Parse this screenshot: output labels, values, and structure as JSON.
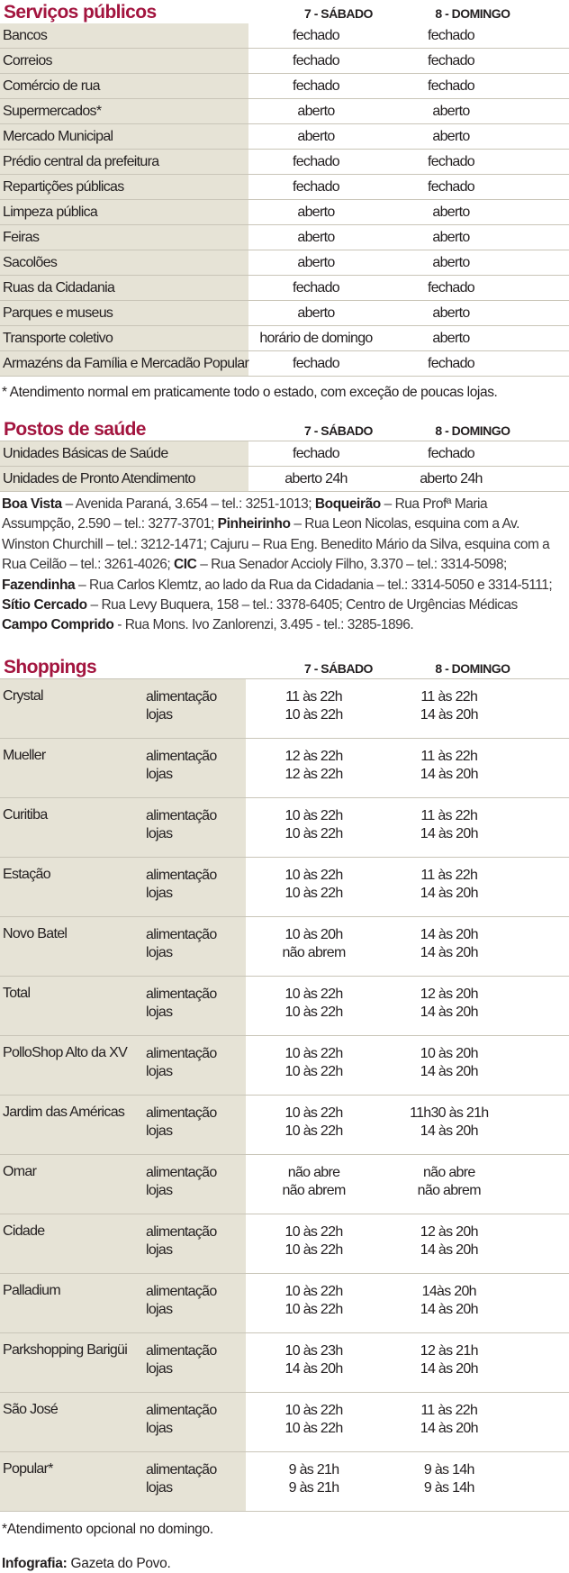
{
  "servicos": {
    "title": "Serviços públicos",
    "col1": "7 - SÁBADO",
    "col2": "8 - DOMINGO",
    "rows": [
      {
        "label": "Bancos",
        "sat": "fechado",
        "sun": "fechado"
      },
      {
        "label": "Correios",
        "sat": "fechado",
        "sun": "fechado"
      },
      {
        "label": "Comércio de rua",
        "sat": "fechado",
        "sun": "fechado"
      },
      {
        "label": "Supermercados*",
        "sat": "aberto",
        "sun": "aberto"
      },
      {
        "label": "Mercado Municipal",
        "sat": "aberto",
        "sun": "aberto"
      },
      {
        "label": "Prédio central da prefeitura",
        "sat": "fechado",
        "sun": "fechado"
      },
      {
        "label": "Repartições públicas",
        "sat": "fechado",
        "sun": "fechado"
      },
      {
        "label": "Limpeza pública",
        "sat": "aberto",
        "sun": "aberto"
      },
      {
        "label": "Feiras",
        "sat": "aberto",
        "sun": "aberto"
      },
      {
        "label": "Sacolões",
        "sat": "aberto",
        "sun": "aberto"
      },
      {
        "label": "Ruas da Cidadania",
        "sat": "fechado",
        "sun": "fechado"
      },
      {
        "label": "Parques e museus",
        "sat": "aberto",
        "sun": "aberto"
      },
      {
        "label": "Transporte coletivo",
        "sat": "horário de domingo",
        "sun": "aberto"
      },
      {
        "label": "Armazéns da Família e Mercadão Popular",
        "sat": "fechado",
        "sun": "fechado"
      }
    ],
    "note": "* Atendimento normal em praticamente todo o estado, com exceção de poucas lojas."
  },
  "saude": {
    "title": "Postos de saúde",
    "col1": "7 - SÁBADO",
    "col2": "8 - DOMINGO",
    "rows": [
      {
        "label": "Unidades Básicas de Saúde",
        "sat": "fechado",
        "sun": "fechado"
      },
      {
        "label": "Unidades de Pronto Atendimento",
        "sat": "aberto 24h",
        "sun": "aberto 24h"
      }
    ],
    "text": [
      {
        "bold": "Boa Vista",
        "text": " – Avenida Paraná, 3.654 – tel.: 3251-1013; "
      },
      {
        "bold": "Boqueirão",
        "text": " – Rua Profª Maria Assumpção, 2.590 – tel.: 3277-3701; "
      },
      {
        "bold": "Pinheirinho",
        "text": " – Rua Leon Nicolas, esquina com a Av. Winston Churchill – tel.: 3212-1471; Cajuru – Rua Eng. Benedito Mário da Silva, esquina com a Rua Ceilão – tel.: 3261-4026; "
      },
      {
        "bold": "CIC",
        "text": " – Rua Senador Accioly Filho, 3.370 – tel.: 3314-5098; "
      },
      {
        "bold": "Fazendinha",
        "text": " – Rua Carlos Klemtz, ao lado da Rua da Cidadania – tel.: 3314-5050 e 3314-5111; "
      },
      {
        "bold": "Sítio Cercado",
        "text": " – Rua Levy Buquera, 158 – tel.: 3378-6405; Centro de Urgências Médicas "
      },
      {
        "bold": "Campo Comprido",
        "text": " - Rua Mons. Ivo Zanlorenzi, 3.495 - tel.: 3285-1896."
      }
    ]
  },
  "shoppings": {
    "title": "Shoppings",
    "col1": "7 - SÁBADO",
    "col2": "8 - DOMINGO",
    "cat1": "alimentação",
    "cat2": "lojas",
    "rows": [
      {
        "name": "Crystal",
        "sat_food": "11 às 22h",
        "sat_shops": "10 às 22h",
        "sun_food": "11 às 22h",
        "sun_shops": "14 às 20h"
      },
      {
        "name": "Mueller",
        "sat_food": "12 às 22h",
        "sat_shops": "12 às 22h",
        "sun_food": "11 às 22h",
        "sun_shops": "14 às 20h"
      },
      {
        "name": "Curitiba",
        "sat_food": "10 às 22h",
        "sat_shops": "10 às 22h",
        "sun_food": "11 às 22h",
        "sun_shops": "14 às 20h"
      },
      {
        "name": "Estação",
        "sat_food": "10 às 22h",
        "sat_shops": "10 às 22h",
        "sun_food": "11 às 22h",
        "sun_shops": "14 às 20h"
      },
      {
        "name": "Novo Batel",
        "sat_food": "10 às 20h",
        "sat_shops": "não abrem",
        "sun_food": "14 às 20h",
        "sun_shops": "14 às 20h"
      },
      {
        "name": "Total",
        "sat_food": "10 às 22h",
        "sat_shops": "10 às 22h",
        "sun_food": "12 às 20h",
        "sun_shops": "14 às 20h"
      },
      {
        "name": "PolloShop Alto da XV",
        "sat_food": "10 às 22h",
        "sat_shops": "10 às 22h",
        "sun_food": "10 às 20h",
        "sun_shops": "14 às 20h"
      },
      {
        "name": "Jardim das Américas",
        "sat_food": "10 às 22h",
        "sat_shops": "10 às 22h",
        "sun_food": "11h30 às 21h",
        "sun_shops": "14 às 20h"
      },
      {
        "name": "Omar",
        "sat_food": "não abre",
        "sat_shops": "não abrem",
        "sun_food": "não abre",
        "sun_shops": "não abrem"
      },
      {
        "name": "Cidade",
        "sat_food": "10 às 22h",
        "sat_shops": "10 às 22h",
        "sun_food": "12 às 20h",
        "sun_shops": "14 às 20h"
      },
      {
        "name": "Palladium",
        "sat_food": "10 às 22h",
        "sat_shops": "10 às 22h",
        "sun_food": "14às 20h",
        "sun_shops": "14 às 20h"
      },
      {
        "name": "Parkshopping Barigüi",
        "sat_food": "10 às 23h",
        "sat_shops": "14 às 20h",
        "sun_food": "12 às 21h",
        "sun_shops": "14 às 20h"
      },
      {
        "name": "São José",
        "sat_food": "10 às 22h",
        "sat_shops": "10 às 22h",
        "sun_food": "11 às 22h",
        "sun_shops": "14 às 20h"
      },
      {
        "name": "Popular*",
        "sat_food": "9 às 21h",
        "sat_shops": "9 às 21h",
        "sun_food": "9 às 14h",
        "sun_shops": "9 às 14h"
      }
    ],
    "note": "*Atendimento opcional no domingo."
  },
  "credit": {
    "label": "Infografia:",
    "source": " Gazeta do Povo."
  },
  "colors": {
    "title": "#a3153f",
    "label_bg": "#e6e3d6",
    "rule": "#c9c5b8"
  }
}
